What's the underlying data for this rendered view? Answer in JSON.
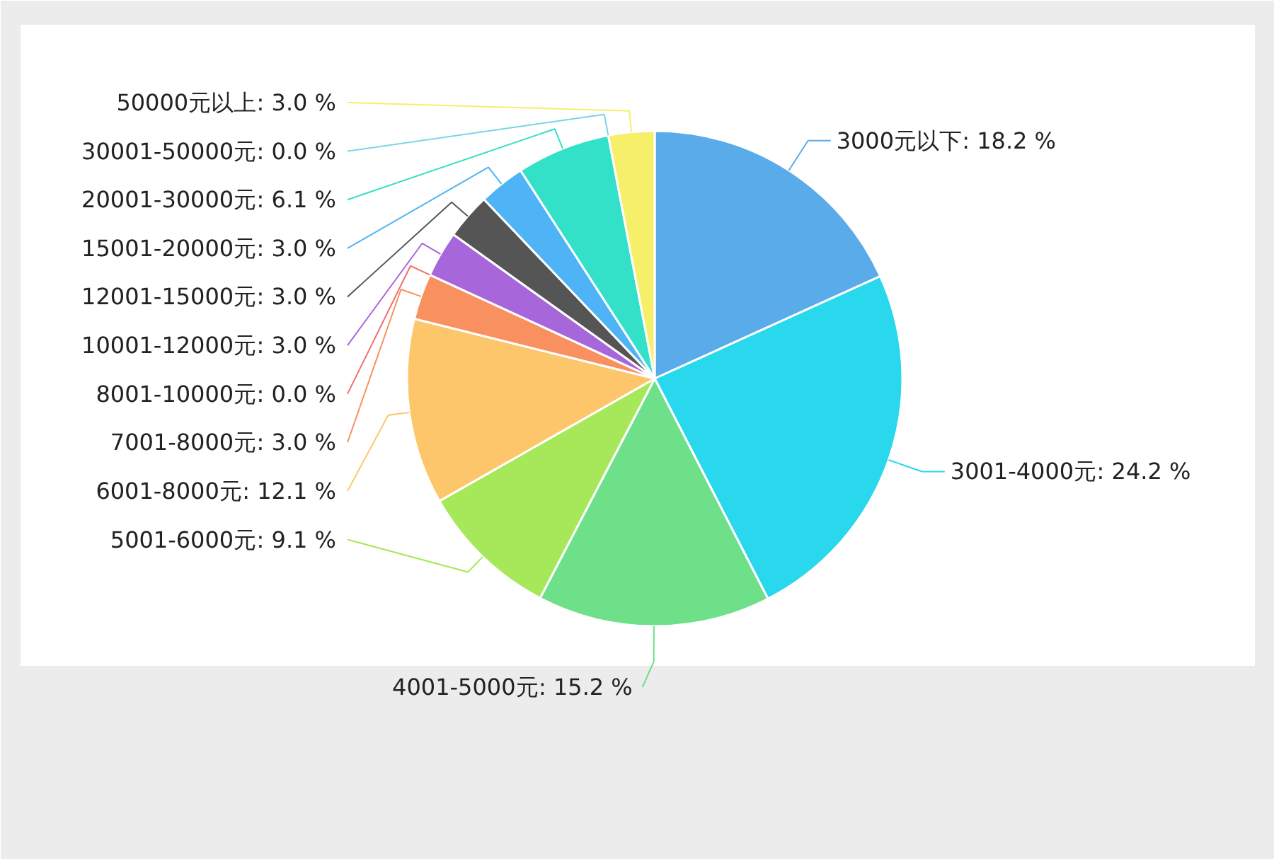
{
  "chart_data": {
    "type": "pie",
    "categories": [
      "3000元以下",
      "3001-4000元",
      "4001-5000元",
      "5001-6000元",
      "6001-8000元",
      "7001-8000元",
      "8001-10000元",
      "10001-12000元",
      "12001-15000元",
      "15001-20000元",
      "20001-30000元",
      "30001-50000元",
      "50000元以上"
    ],
    "values": [
      18.2,
      24.2,
      15.2,
      9.1,
      12.1,
      3.0,
      0.0,
      3.0,
      3.0,
      3.0,
      6.1,
      0.0,
      3.0
    ],
    "colors": [
      "#5aabea",
      "#29d8ec",
      "#6ee08a",
      "#a6e85a",
      "#fdc66a",
      "#f99060",
      "#f07070",
      "#a766d9",
      "#555555",
      "#4eb4f5",
      "#33e0c8",
      "#7ad4e8",
      "#f5ef6a"
    ],
    "value_labels": [
      ": 18.2 %",
      ": 24.2 %",
      ": 15.2 %",
      ": 9.1 %",
      ": 12.1 %",
      ": 3.0 %",
      ": 0.0 %",
      ": 3.0 %",
      ": 3.0 %",
      ": 3.0 %",
      ": 6.1 %",
      ": 0.0 %",
      ": 3.0 %"
    ]
  }
}
